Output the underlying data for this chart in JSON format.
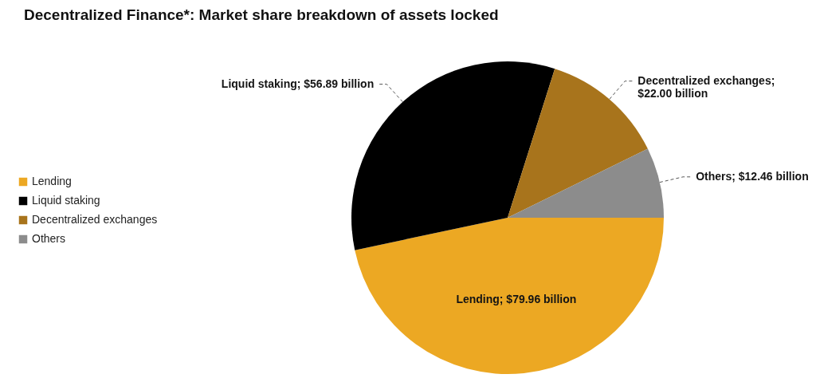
{
  "chart_data": {
    "type": "pie",
    "title": "Decentralized Finance*: Market share breakdown of assets locked",
    "categories": [
      "Lending",
      "Liquid staking",
      "Decentralized exchanges",
      "Others"
    ],
    "values": [
      79.96,
      56.89,
      22.0,
      12.46
    ],
    "colors": [
      "#eca823",
      "#000000",
      "#a8741c",
      "#8c8c8c"
    ],
    "value_labels": [
      "Lending; $79.96 billion",
      "Liquid staking; $56.89 billion",
      "Decentralized exchanges;\n$22.00 billion",
      "Others; $12.46 billion"
    ],
    "legend": "left"
  }
}
